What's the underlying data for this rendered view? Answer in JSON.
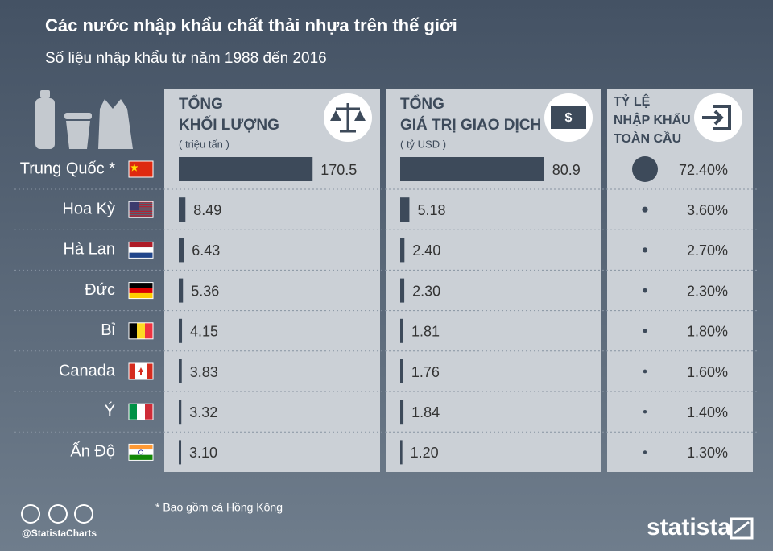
{
  "chart_data": {
    "type": "bar",
    "title": "Các nước nhập khẩu chất thải nhựa trên thế giới",
    "subtitle": "Số liệu nhập khẩu từ năm 1988 đến 2016",
    "categories": [
      "Trung Quốc *",
      "Hoa Kỳ",
      "Hà Lan",
      "Đức",
      "Bỉ",
      "Canada",
      "Ý",
      "Ấn Độ"
    ],
    "series": [
      {
        "name": [
          "TỔNG",
          "KHỐI LƯỢNG"
        ],
        "unit": "( triệu tấn )",
        "color": "#3d4a5a",
        "xlim": [
          0,
          200
        ],
        "values": [
          170.5,
          8.49,
          6.43,
          5.36,
          4.15,
          3.83,
          3.32,
          3.1
        ],
        "value_labels": [
          "170.5",
          "8.49",
          "6.43",
          "5.36",
          "4.15",
          "3.83",
          "3.32",
          "3.10"
        ]
      },
      {
        "name": [
          "TỔNG",
          "GIÁ TRỊ GIAO DỊCH"
        ],
        "unit": "( tỷ USD )",
        "color": "#3d4a5a",
        "xlim": [
          0,
          100
        ],
        "values": [
          80.9,
          5.18,
          2.4,
          2.3,
          1.81,
          1.76,
          1.84,
          1.2
        ],
        "value_labels": [
          "80.9",
          "5.18",
          "2.40",
          "2.30",
          "1.81",
          "1.76",
          "1.84",
          "1.20"
        ]
      },
      {
        "name": [
          "TỶ LỆ",
          "NHẬP KHẨU",
          "TOÀN CẦU"
        ],
        "color": "#3d4a5a",
        "values": [
          72.4,
          3.6,
          2.7,
          2.3,
          1.8,
          1.6,
          1.4,
          1.3
        ],
        "value_labels": [
          "72.40%",
          "3.60%",
          "2.70%",
          "2.30%",
          "1.80%",
          "1.60%",
          "1.40%",
          "1.30%"
        ]
      }
    ],
    "footnote": "* Bao gồm cả Hồng Kông",
    "credit": "@StatistaCharts",
    "brand": "statista"
  }
}
